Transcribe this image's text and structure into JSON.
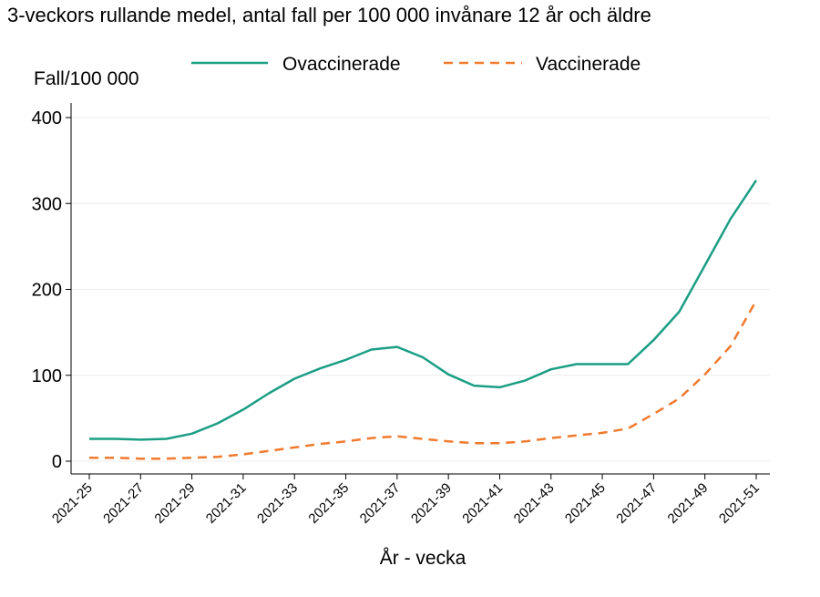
{
  "chart_data": {
    "type": "line",
    "title": "3-veckors rullande medel, antal fall per 100 000 invånare 12 år och äldre",
    "ylabel": "Fall/100 000",
    "xlabel": "År - vecka",
    "ylim": [
      0,
      400
    ],
    "yticks": [
      0,
      100,
      200,
      300,
      400
    ],
    "grid": true,
    "legend": "top",
    "categories": [
      "2021-25",
      "2021-26",
      "2021-27",
      "2021-28",
      "2021-29",
      "2021-30",
      "2021-31",
      "2021-32",
      "2021-33",
      "2021-34",
      "2021-35",
      "2021-36",
      "2021-37",
      "2021-38",
      "2021-39",
      "2021-40",
      "2021-41",
      "2021-42",
      "2021-43",
      "2021-44",
      "2021-45",
      "2021-46",
      "2021-47",
      "2021-48",
      "2021-49",
      "2021-50",
      "2021-51"
    ],
    "xtick_labels": [
      "2021-25",
      "2021-27",
      "2021-29",
      "2021-31",
      "2021-33",
      "2021-35",
      "2021-37",
      "2021-39",
      "2021-41",
      "2021-43",
      "2021-45",
      "2021-47",
      "2021-49",
      "2021-51"
    ],
    "series": [
      {
        "name": "Ovaccinerade",
        "color": "#1a9e84",
        "style": "solid",
        "values": [
          26,
          26,
          25,
          26,
          32,
          44,
          60,
          79,
          96,
          108,
          118,
          130,
          133,
          121,
          101,
          88,
          86,
          94,
          107,
          113,
          113,
          113,
          141,
          174,
          228,
          282,
          327
        ]
      },
      {
        "name": "Vaccinerade",
        "color": "#f07a2e",
        "style": "dashed",
        "values": [
          4,
          4,
          3,
          3,
          4,
          5,
          8,
          12,
          16,
          20,
          23,
          27,
          29,
          26,
          23,
          21,
          21,
          23,
          27,
          30,
          33,
          38,
          55,
          73,
          101,
          134,
          187
        ]
      }
    ]
  }
}
